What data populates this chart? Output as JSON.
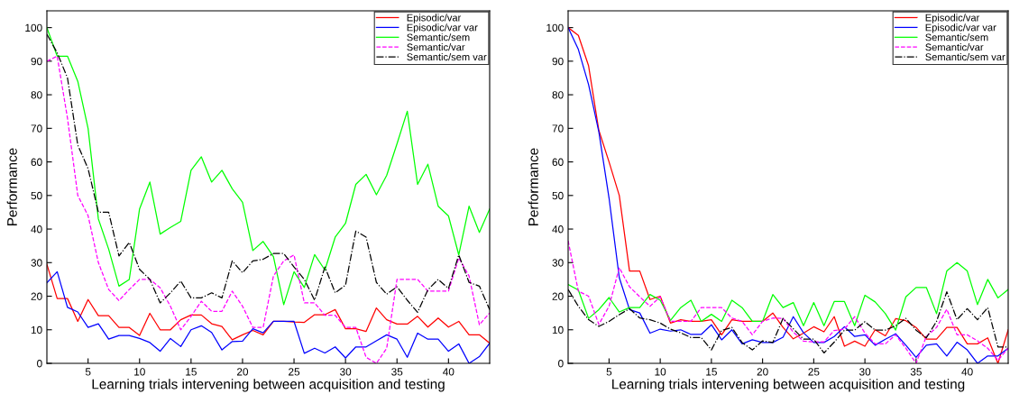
{
  "chart_data": [
    {
      "type": "line",
      "xlabel": "Learning trials intervening between acquisition and testing",
      "ylabel": "Performance",
      "x": [
        1,
        2,
        3,
        4,
        5,
        6,
        7,
        8,
        9,
        10,
        11,
        12,
        13,
        14,
        15,
        16,
        17,
        18,
        19,
        20,
        21,
        22,
        23,
        24,
        25,
        26,
        27,
        28,
        29,
        30,
        31,
        32,
        33,
        34,
        35,
        36,
        37,
        38,
        39,
        40,
        41,
        42,
        43,
        44
      ],
      "xlim": [
        1,
        44
      ],
      "ylim": [
        0,
        105
      ],
      "xticks": [
        5,
        10,
        15,
        20,
        25,
        30,
        35,
        40
      ],
      "yticks": [
        0,
        10,
        20,
        30,
        40,
        50,
        60,
        70,
        80,
        90,
        100
      ],
      "grid": false,
      "legend": "top right",
      "marker": "none",
      "series": [
        {
          "name": "Episodic/var",
          "color": "#ff0000",
          "line_style": "solid",
          "values": [
            29.5,
            19.3,
            19.3,
            12.5,
            19,
            14.2,
            14.2,
            10.7,
            10.7,
            8.3,
            14.9,
            10,
            10,
            13,
            14.4,
            14.4,
            11.8,
            11,
            7,
            8.5,
            9.8,
            8.5,
            12.5,
            12.5,
            12.3,
            12.2,
            14.5,
            14.5,
            16,
            10.3,
            10.3,
            9.5,
            16.5,
            13,
            11.7,
            11.7,
            14,
            10.8,
            13.5,
            10.8,
            12.5,
            8.5,
            8.5,
            6
          ]
        },
        {
          "name": "Episodic/var var",
          "color": "#0000ff",
          "line_style": "solid",
          "values": [
            24,
            27.3,
            16.7,
            15.3,
            10.7,
            11.8,
            7.2,
            8.3,
            8.3,
            7.4,
            6.2,
            3.6,
            7.4,
            5,
            10,
            11.2,
            9.2,
            4,
            6.5,
            6.6,
            10.3,
            9.1,
            12.5,
            12.5,
            12.5,
            3,
            4.5,
            3.1,
            4.9,
            1.6,
            4.9,
            4.9,
            6.7,
            8.5,
            7.2,
            1.8,
            9,
            7.2,
            7.2,
            3.6,
            5.8,
            0,
            2,
            6
          ]
        },
        {
          "name": "Semantic/sem",
          "color": "#00ff00",
          "line_style": "solid",
          "values": [
            100,
            91.5,
            91.5,
            84,
            70,
            43,
            34,
            23,
            25,
            46,
            54,
            38.5,
            40.5,
            42.3,
            57.5,
            61.5,
            54,
            57.5,
            52,
            48,
            33.6,
            36.3,
            31.8,
            17.5,
            27.3,
            22.6,
            32.4,
            27.8,
            37.6,
            41.7,
            53.3,
            56.3,
            50.2,
            56,
            65.4,
            75.1,
            53.3,
            59.3,
            46.8,
            43.9,
            32.3,
            46.8,
            39,
            46
          ]
        },
        {
          "name": "Semantic/var",
          "color": "#ff00ff",
          "line_style": "dashed",
          "values": [
            90,
            91.5,
            73,
            50,
            44,
            30,
            22,
            18.7,
            22,
            25,
            25,
            22.5,
            17,
            10,
            14,
            18.5,
            15.5,
            15.5,
            21.5,
            17,
            10.7,
            10.7,
            26,
            30.5,
            32.3,
            18,
            18,
            14.3,
            14.3,
            10.7,
            10.7,
            1.8,
            0,
            4.5,
            25,
            25,
            25,
            21.5,
            21.5,
            21.5,
            31.4,
            26,
            11.5,
            15
          ]
        },
        {
          "name": "Semantic/sem var",
          "color": "#000000",
          "line_style": "dashdot",
          "values": [
            98,
            92.5,
            85,
            65,
            58,
            45,
            45,
            32,
            36,
            28,
            25,
            18,
            21,
            24.5,
            19.5,
            19.5,
            21,
            19.5,
            30.5,
            27,
            30.5,
            31,
            32.7,
            32.7,
            28.7,
            25,
            18.8,
            28.7,
            21,
            23.3,
            39.4,
            37.6,
            24.1,
            20.6,
            22.8,
            18.8,
            15.2,
            21.9,
            25,
            22.3,
            32.3,
            24.1,
            23,
            16
          ]
        }
      ]
    },
    {
      "type": "line",
      "xlabel": "Learning trials intervening between acquisition and testing",
      "ylabel": "Performance",
      "x": [
        1,
        2,
        3,
        4,
        5,
        6,
        7,
        8,
        9,
        10,
        11,
        12,
        13,
        14,
        15,
        16,
        17,
        18,
        19,
        20,
        21,
        22,
        23,
        24,
        25,
        26,
        27,
        28,
        29,
        30,
        31,
        32,
        33,
        34,
        35,
        36,
        37,
        38,
        39,
        40,
        41,
        42,
        43,
        44
      ],
      "xlim": [
        1,
        44
      ],
      "ylim": [
        0,
        105
      ],
      "xticks": [
        5,
        10,
        15,
        20,
        25,
        30,
        35,
        40
      ],
      "yticks": [
        0,
        10,
        20,
        30,
        40,
        50,
        60,
        70,
        80,
        90,
        100
      ],
      "grid": false,
      "legend": "top right",
      "marker": "none",
      "series": [
        {
          "name": "Episodic/var",
          "color": "#ff0000",
          "line_style": "solid",
          "values": [
            100,
            97.7,
            88.6,
            69.4,
            60,
            50,
            27.5,
            27.5,
            19,
            20,
            12,
            13,
            12.5,
            12.5,
            13,
            8.5,
            13,
            12.5,
            12.5,
            12.5,
            15,
            10.7,
            7.3,
            9,
            10.9,
            9.4,
            13.9,
            5.1,
            6.6,
            5.1,
            10,
            8.2,
            13.3,
            12.7,
            10.7,
            7.2,
            7.2,
            10.7,
            10.7,
            5.8,
            5.8,
            7.6,
            0,
            10
          ]
        },
        {
          "name": "Episodic/var var",
          "color": "#0000ff",
          "line_style": "solid",
          "values": [
            100,
            93.5,
            83,
            69,
            49.2,
            25.5,
            16,
            15,
            9,
            10.2,
            9.6,
            10,
            8.6,
            8.6,
            11.5,
            7,
            10,
            5.8,
            7,
            6.2,
            6.2,
            7.8,
            13.9,
            9.1,
            6.2,
            6.2,
            8,
            10.9,
            8,
            8.5,
            5.4,
            7.2,
            8.8,
            5.4,
            1.8,
            5.4,
            5.8,
            2.2,
            6.3,
            4,
            0,
            2.2,
            2.2,
            4.5
          ]
        },
        {
          "name": "Semantic/sem",
          "color": "#00ff00",
          "line_style": "solid",
          "values": [
            23.5,
            21.8,
            13.4,
            16,
            19.6,
            15.3,
            16.6,
            16.6,
            20.5,
            18.8,
            12.8,
            16.6,
            18.8,
            12.5,
            14.6,
            12.5,
            18.8,
            16.6,
            12.5,
            12.5,
            20.5,
            16.6,
            18.1,
            11.2,
            18.1,
            11.2,
            18.4,
            18.4,
            11.2,
            20.3,
            18.3,
            14.8,
            9.9,
            19.8,
            22.6,
            22.6,
            14.8,
            27.5,
            30,
            27.5,
            17.5,
            25,
            19.5,
            22
          ]
        },
        {
          "name": "Semantic/var",
          "color": "#ff00ff",
          "line_style": "dashed",
          "values": [
            36.5,
            21.5,
            20,
            11.6,
            17,
            28.5,
            22.8,
            19.8,
            17,
            19.8,
            12.5,
            12.5,
            12.5,
            16.6,
            16.6,
            16.6,
            13.5,
            12.5,
            8.5,
            12.5,
            13.5,
            13.4,
            9.3,
            6.6,
            6.4,
            6.4,
            9.8,
            10.2,
            13.9,
            9,
            5.8,
            5.8,
            8.5,
            4.5,
            0,
            8,
            10.7,
            16.1,
            8.5,
            8.5,
            6.7,
            4.5,
            0.9,
            4.5
          ]
        },
        {
          "name": "Semantic/sem var",
          "color": "#000000",
          "line_style": "dashdot",
          "values": [
            22,
            17,
            13,
            11,
            12.5,
            14.5,
            16.3,
            13.5,
            13,
            12,
            10.2,
            9.1,
            7.7,
            7.7,
            4,
            9.8,
            10.7,
            6.2,
            4,
            6.7,
            6.2,
            13.4,
            10.3,
            7.2,
            7.2,
            3.1,
            6.3,
            9.9,
            9.9,
            12.4,
            9.9,
            9.9,
            11.2,
            13.4,
            9.9,
            7.6,
            12.5,
            21.3,
            13,
            16.3,
            13,
            16.6,
            4.9,
            4.9
          ]
        }
      ]
    }
  ]
}
